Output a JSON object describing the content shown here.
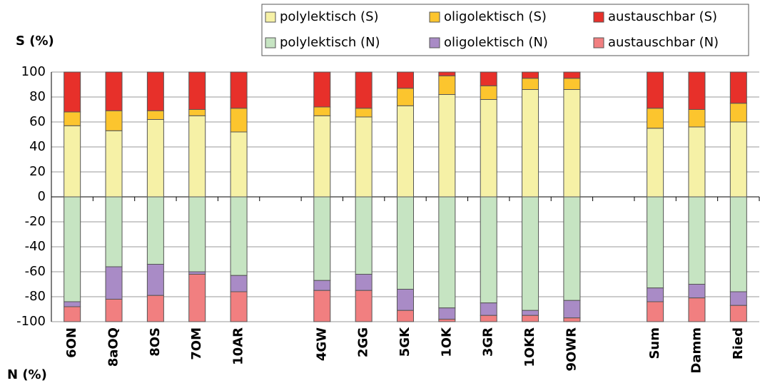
{
  "chart_data": {
    "type": "stacked-bar",
    "y_label": "S (%)",
    "x_label": "N (%)",
    "categories": [
      "6ON",
      "8aOQ",
      "8OS",
      "7OM",
      "10AR",
      null,
      "4GW",
      "2GG",
      "5GK",
      "1OK",
      "3GR",
      "1OKR",
      "9OWR",
      null,
      "Sum",
      "Damm",
      "Ried"
    ],
    "series": [
      {
        "name": "polylektisch (S)",
        "color": "#f6f1a6",
        "values": [
          57,
          53,
          62,
          65,
          52,
          null,
          65,
          64,
          73,
          82,
          78,
          86,
          86,
          null,
          55,
          56,
          60
        ]
      },
      {
        "name": "oligolektisch (S)",
        "color": "#fcc52e",
        "values": [
          11,
          16,
          7,
          5,
          19,
          null,
          7,
          7,
          14,
          15,
          11,
          9,
          9,
          null,
          16,
          14,
          15
        ]
      },
      {
        "name": "austauschbar (S)",
        "color": "#e7302a",
        "values": [
          32,
          31,
          31,
          30,
          29,
          null,
          28,
          29,
          13,
          3,
          11,
          5,
          5,
          null,
          29,
          30,
          25
        ]
      },
      {
        "name": "polylektisch (N)",
        "color": "#c6e4c2",
        "values": [
          -84,
          -56,
          -54,
          -60,
          -63,
          null,
          -67,
          -62,
          -74,
          -89,
          -85,
          -91,
          -83,
          null,
          -73,
          -70,
          -76
        ]
      },
      {
        "name": "oligolektisch (N)",
        "color": "#a98bc6",
        "values": [
          -4,
          -26,
          -25,
          -2,
          -13,
          null,
          -8,
          -13,
          -17,
          -9,
          -10,
          -4,
          -14,
          null,
          -11,
          -11,
          -11
        ]
      },
      {
        "name": "austauschbar (N)",
        "color": "#f17f80",
        "values": [
          -12,
          -18,
          -21,
          -38,
          -24,
          null,
          -25,
          -25,
          -9,
          -2,
          -5,
          -5,
          -3,
          null,
          -16,
          -19,
          -13
        ]
      }
    ],
    "ylim": [
      -100,
      100
    ],
    "yticks": [
      100,
      80,
      60,
      40,
      20,
      0,
      -20,
      -40,
      -60,
      -80,
      -100
    ],
    "grid": true
  }
}
